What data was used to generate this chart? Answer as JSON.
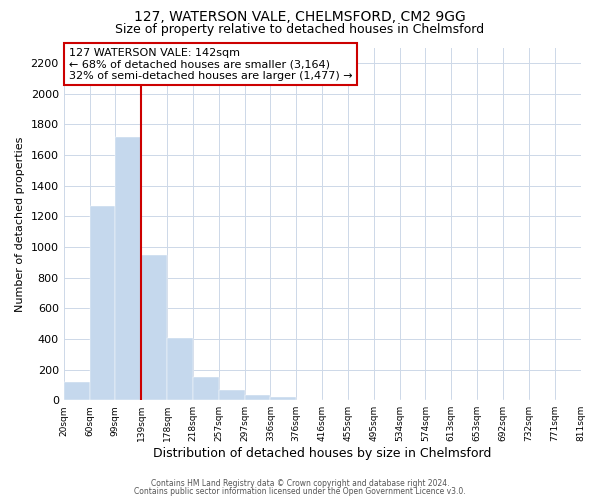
{
  "title_line1": "127, WATERSON VALE, CHELMSFORD, CM2 9GG",
  "title_line2": "Size of property relative to detached houses in Chelmsford",
  "xlabel": "Distribution of detached houses by size in Chelmsford",
  "ylabel": "Number of detached properties",
  "bar_values": [
    120,
    1265,
    1715,
    945,
    405,
    150,
    68,
    35,
    18,
    0,
    0,
    0,
    0,
    0,
    0,
    0,
    0,
    0,
    0,
    0
  ],
  "all_labels": [
    "20sqm",
    "60sqm",
    "99sqm",
    "139sqm",
    "178sqm",
    "218sqm",
    "257sqm",
    "297sqm",
    "336sqm",
    "376sqm",
    "416sqm",
    "455sqm",
    "495sqm",
    "534sqm",
    "574sqm",
    "613sqm",
    "653sqm",
    "692sqm",
    "732sqm",
    "771sqm",
    "811sqm"
  ],
  "bar_color": "#c5d8ed",
  "red_line_color": "#cc0000",
  "annotation_title": "127 WATERSON VALE: 142sqm",
  "annotation_line2": "← 68% of detached houses are smaller (3,164)",
  "annotation_line3": "32% of semi-detached houses are larger (1,477) →",
  "ylim": [
    0,
    2300
  ],
  "yticks": [
    0,
    200,
    400,
    600,
    800,
    1000,
    1200,
    1400,
    1600,
    1800,
    2000,
    2200
  ],
  "footer_line1": "Contains HM Land Registry data © Crown copyright and database right 2024.",
  "footer_line2": "Contains public sector information licensed under the Open Government Licence v3.0.",
  "bg_color": "#ffffff",
  "grid_color": "#cdd8e8",
  "title_fontsize": 10,
  "subtitle_fontsize": 9,
  "ylabel_fontsize": 8,
  "xlabel_fontsize": 9,
  "ytick_fontsize": 8,
  "xtick_fontsize": 6.5,
  "ann_fontsize": 8,
  "footer_fontsize": 5.5
}
